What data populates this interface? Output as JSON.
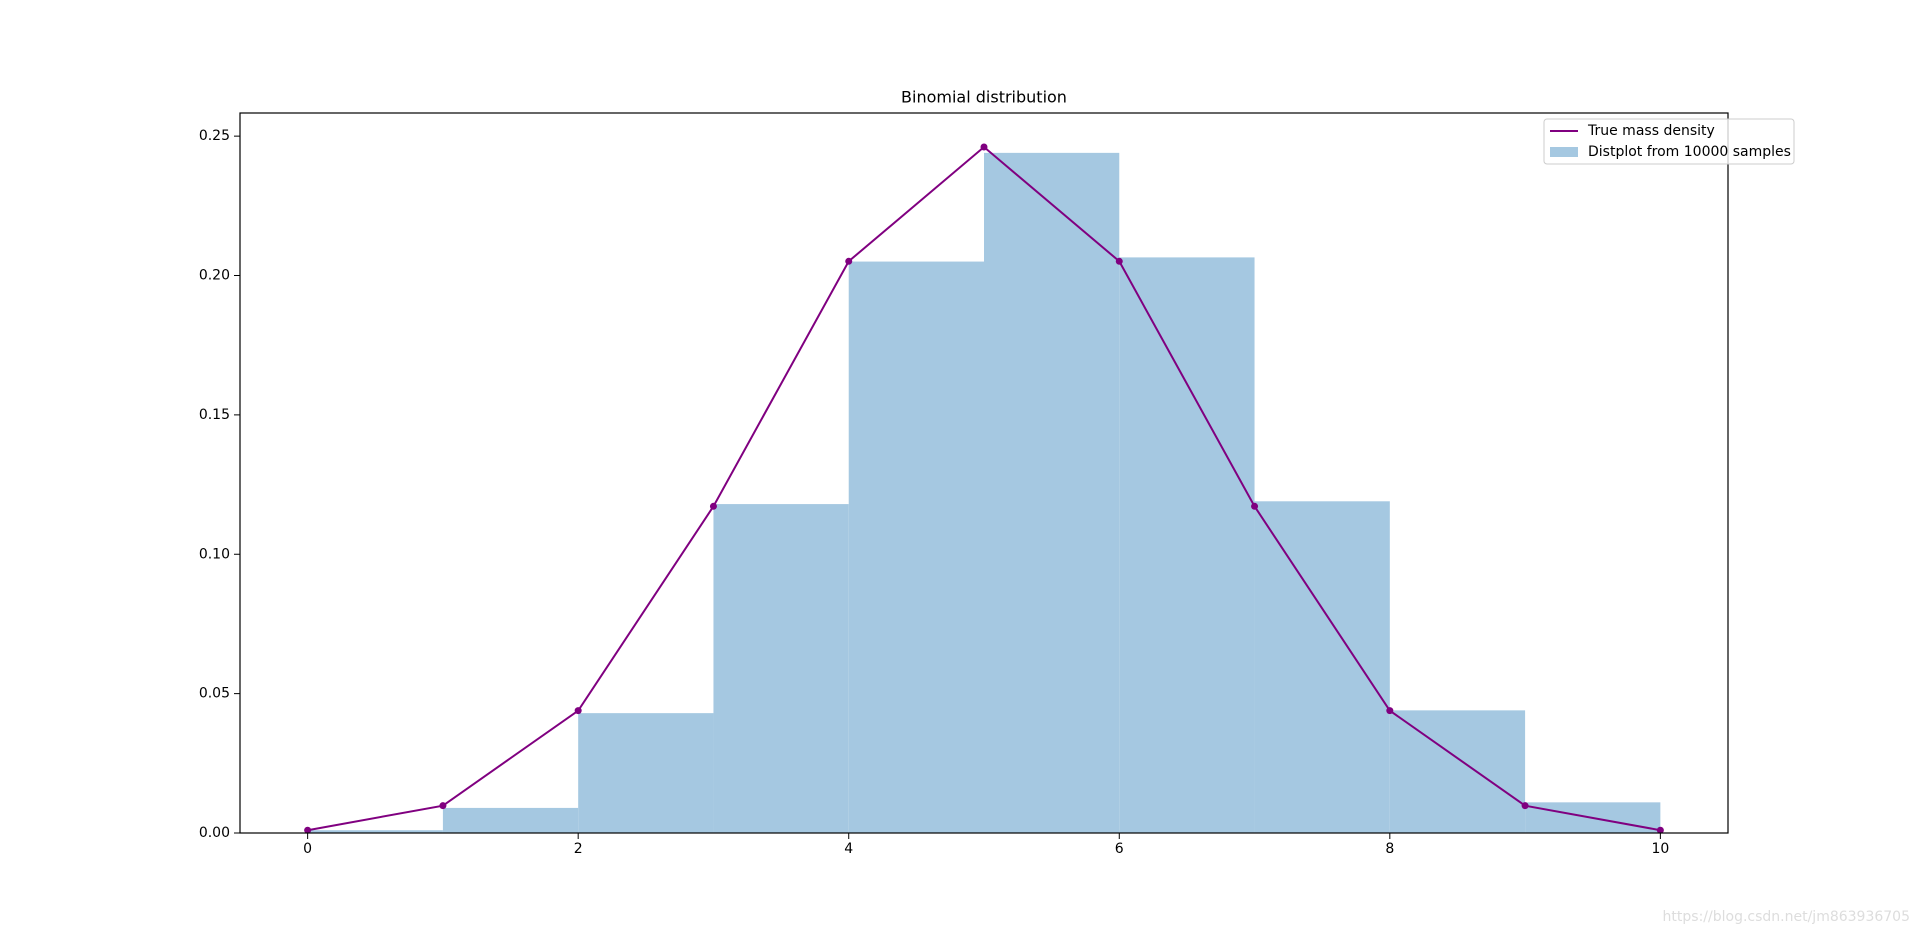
{
  "chart_data": {
    "type": "histogram",
    "title": "Binomial distribution",
    "bins": [
      0,
      1,
      2,
      3,
      4,
      5,
      6,
      7,
      8,
      9,
      10
    ],
    "values": [
      0.001,
      0.009,
      0.043,
      0.118,
      0.205,
      0.244,
      0.2065,
      0.119,
      0.044,
      0.011
    ],
    "name": "Distplot from 10000 samples",
    "color": "#a5c8e1",
    "line": {
      "name": "True mass density",
      "color": "#800080",
      "x": [
        0,
        1,
        2,
        3,
        4,
        5,
        6,
        7,
        8,
        9,
        10
      ],
      "values": [
        0.001,
        0.0098,
        0.0439,
        0.1172,
        0.2051,
        0.2461,
        0.2051,
        0.1172,
        0.0439,
        0.0098,
        0.001
      ]
    },
    "xlim": [
      -0.5,
      10.5
    ],
    "ylim": [
      0,
      0.2583
    ],
    "xticks": [
      0,
      2,
      4,
      6,
      8,
      10
    ],
    "yticks": [
      {
        "value": 0,
        "label": "0.00"
      },
      {
        "value": 0.05,
        "label": "0.05"
      },
      {
        "value": 0.1,
        "label": "0.10"
      },
      {
        "value": 0.15,
        "label": "0.15"
      },
      {
        "value": 0.2,
        "label": "0.20"
      },
      {
        "value": 0.25,
        "label": "0.25"
      }
    ],
    "legend": "upper right"
  },
  "watermark": "https://blog.csdn.net/jm863936705"
}
